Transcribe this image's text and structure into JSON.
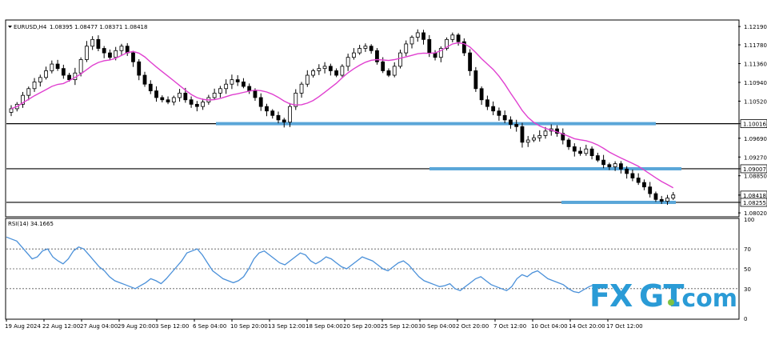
{
  "header": {
    "symbol": "EURUSD,H4",
    "ohlc": "1.08395 1.08477 1.08371 1.08418"
  },
  "rsi_header": "RSI(14) 34.1665",
  "logo_text": {
    "fx": "FX",
    "gt": "GT",
    "com": ".com"
  },
  "colors": {
    "candle_up": "#000000",
    "candle_down": "#000000",
    "ma_line": "#e040d0",
    "support_band": "#5aa6d8",
    "rsi_line": "#4a90d9",
    "hline": "#000000"
  },
  "chart_data": [
    {
      "type": "candlestick",
      "instrument": "EURUSD",
      "timeframe": "H4",
      "y_tick_labels": [
        "1.12190",
        "1.11780",
        "1.11360",
        "1.10940",
        "1.10520",
        "1.10016",
        "1.09690",
        "1.09270",
        "1.09007",
        "1.08850",
        "1.08418",
        "1.08255",
        "1.08020"
      ],
      "ylim": [
        1.0795,
        1.123
      ],
      "x_tick_labels": [
        "19 Aug 2024",
        "22 Aug 12:00",
        "27 Aug 04:00",
        "29 Aug 20:00",
        "3 Sep 12:00",
        "6 Sep 04:00",
        "10 Sep 20:00",
        "13 Sep 12:00",
        "18 Sep 04:00",
        "20 Sep 20:00",
        "25 Sep 12:00",
        "30 Sep 04:00",
        "2 Oct 20:00",
        "7 Oct 12:00",
        "10 Oct 04:00",
        "14 Oct 20:00",
        "17 Oct 12:00"
      ],
      "close_path": [
        1.1035,
        1.1045,
        1.1065,
        1.108,
        1.1095,
        1.1105,
        1.112,
        1.1135,
        1.1125,
        1.111,
        1.11,
        1.1115,
        1.1145,
        1.1175,
        1.119,
        1.117,
        1.116,
        1.115,
        1.1165,
        1.1175,
        1.116,
        1.114,
        1.111,
        1.109,
        1.1075,
        1.106,
        1.1055,
        1.105,
        1.106,
        1.107,
        1.1055,
        1.1045,
        1.104,
        1.105,
        1.106,
        1.107,
        1.108,
        1.109,
        1.11,
        1.1095,
        1.1085,
        1.1075,
        1.106,
        1.104,
        1.103,
        1.102,
        1.101,
        1.1005,
        1.104,
        1.107,
        1.109,
        1.111,
        1.112,
        1.1125,
        1.113,
        1.112,
        1.111,
        1.113,
        1.115,
        1.116,
        1.117,
        1.1175,
        1.1165,
        1.114,
        1.112,
        1.111,
        1.113,
        1.116,
        1.118,
        1.1195,
        1.1205,
        1.119,
        1.116,
        1.115,
        1.117,
        1.119,
        1.12,
        1.1185,
        1.116,
        1.112,
        1.108,
        1.1055,
        1.104,
        1.103,
        1.102,
        1.101,
        1.1,
        1.0995,
        1.096,
        1.0965,
        1.097,
        1.0975,
        1.0985,
        1.099,
        1.098,
        1.0965,
        1.095,
        1.094,
        1.0935,
        1.0945,
        1.093,
        1.092,
        1.091,
        1.0905,
        1.0912,
        1.09,
        1.089,
        1.088,
        1.087,
        1.086,
        1.0845,
        1.0832,
        1.0828,
        1.0835,
        1.0842
      ],
      "ma_period_label": "",
      "horizontal_lines": [
        1.10016,
        1.09007,
        1.08255
      ],
      "support_zones": [
        1.10016,
        1.09007,
        1.08255
      ],
      "price_labels": [
        "1.10016",
        "1.09007",
        "1.08418",
        "1.08255"
      ]
    },
    {
      "type": "line",
      "name": "RSI(14)",
      "last_value": 34.1665,
      "ylim": [
        0,
        100
      ],
      "y_tick_labels": [
        "100",
        "70",
        "50",
        "30",
        "0"
      ],
      "levels": [
        70,
        50,
        30
      ],
      "values": [
        82,
        80,
        78,
        72,
        66,
        60,
        62,
        68,
        70,
        62,
        58,
        55,
        60,
        68,
        72,
        70,
        64,
        58,
        52,
        48,
        42,
        38,
        36,
        34,
        32,
        30,
        33,
        36,
        40,
        38,
        35,
        40,
        46,
        52,
        58,
        66,
        68,
        70,
        64,
        56,
        48,
        44,
        40,
        38,
        36,
        38,
        42,
        50,
        60,
        66,
        68,
        64,
        60,
        56,
        54,
        58,
        62,
        66,
        64,
        58,
        55,
        58,
        62,
        60,
        56,
        52,
        50,
        54,
        58,
        62,
        60,
        58,
        54,
        50,
        48,
        52,
        56,
        58,
        54,
        48,
        42,
        38,
        36,
        34,
        32,
        33,
        35,
        30,
        28,
        32,
        36,
        40,
        42,
        38,
        34,
        32,
        30,
        28,
        32,
        40,
        44,
        42,
        46,
        48,
        44,
        40,
        38,
        36,
        34,
        30,
        27,
        26,
        29,
        32,
        34
      ]
    }
  ]
}
